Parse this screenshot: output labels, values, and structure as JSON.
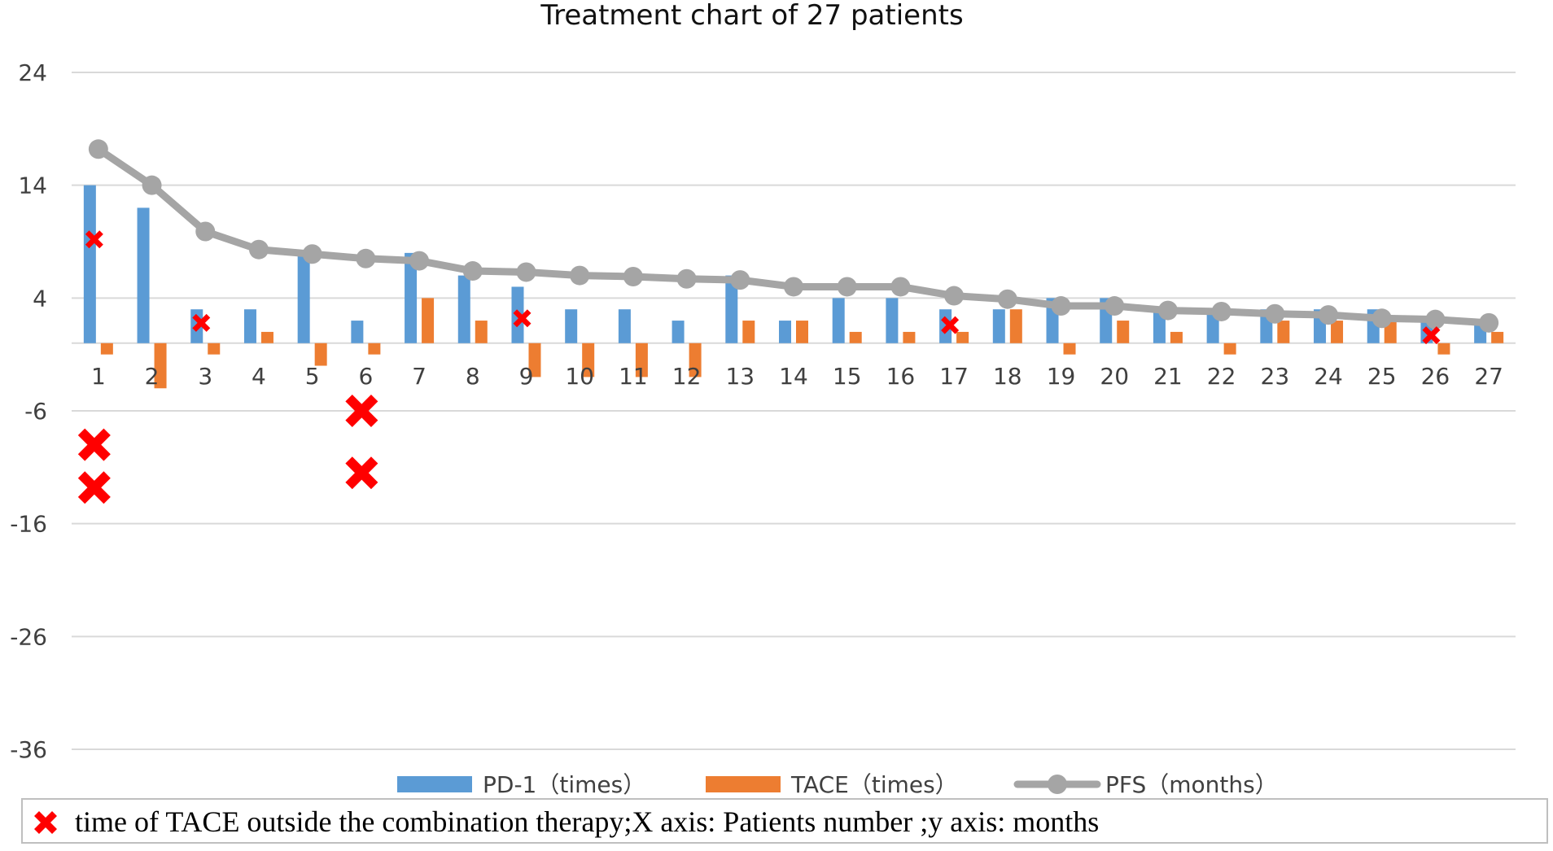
{
  "chart_data": {
    "type": "bar",
    "title": "Treatment chart of 27 patients",
    "xlabel": "Patients number",
    "ylabel": "months",
    "ylim": [
      -36,
      24
    ],
    "yticks": [
      24,
      14,
      4,
      -6,
      -16,
      -26,
      -36
    ],
    "categories": [
      "1",
      "2",
      "3",
      "4",
      "5",
      "6",
      "7",
      "8",
      "9",
      "10",
      "11",
      "12",
      "13",
      "14",
      "15",
      "16",
      "17",
      "18",
      "19",
      "20",
      "21",
      "22",
      "23",
      "24",
      "25",
      "26",
      "27"
    ],
    "series": [
      {
        "name": "PD-1（times）",
        "kind": "bar",
        "color": "#5b9bd5",
        "values": [
          14,
          12,
          3,
          3,
          8,
          2,
          8,
          6,
          5,
          3,
          3,
          2,
          6,
          2,
          4,
          4,
          3,
          3,
          4,
          4,
          3,
          3,
          3,
          3,
          3,
          2,
          2
        ]
      },
      {
        "name": "TACE（times）",
        "kind": "bar",
        "color": "#ed7d31",
        "values": [
          -1,
          -4,
          -1,
          1,
          -2,
          -1,
          4,
          2,
          -3,
          -3,
          -3,
          -3,
          2,
          2,
          1,
          1,
          1,
          3,
          -1,
          2,
          1,
          -1,
          2,
          2,
          2,
          -1,
          1
        ]
      },
      {
        "name": "PFS（months）",
        "kind": "line",
        "color": "#a5a5a5",
        "values": [
          17.2,
          14.0,
          9.9,
          8.3,
          7.9,
          7.5,
          7.3,
          6.4,
          6.3,
          6.0,
          5.9,
          5.7,
          5.6,
          5.0,
          5.0,
          5.0,
          4.2,
          3.9,
          3.3,
          3.3,
          2.9,
          2.8,
          2.6,
          2.5,
          2.2,
          2.1,
          1.8
        ]
      }
    ],
    "markers": {
      "name": "time of TACE outside the combination therapy",
      "color": "#ff0000",
      "points": [
        {
          "patient": 1,
          "y": 9.2,
          "size": "small"
        },
        {
          "patient": 1,
          "y": -9.0,
          "size": "large"
        },
        {
          "patient": 1,
          "y": -12.8,
          "size": "large"
        },
        {
          "patient": 3,
          "y": 1.8,
          "size": "small"
        },
        {
          "patient": 6,
          "y": -6.0,
          "size": "large"
        },
        {
          "patient": 6,
          "y": -11.5,
          "size": "large"
        },
        {
          "patient": 9,
          "y": 2.2,
          "size": "small"
        },
        {
          "patient": 17,
          "y": 1.6,
          "size": "small"
        },
        {
          "patient": 26,
          "y": 0.7,
          "size": "small"
        }
      ]
    },
    "gridlines": true,
    "legend_position": "bottom"
  },
  "footnote": "time of TACE outside the combination therapy;X axis: Patients number ;y axis: months"
}
